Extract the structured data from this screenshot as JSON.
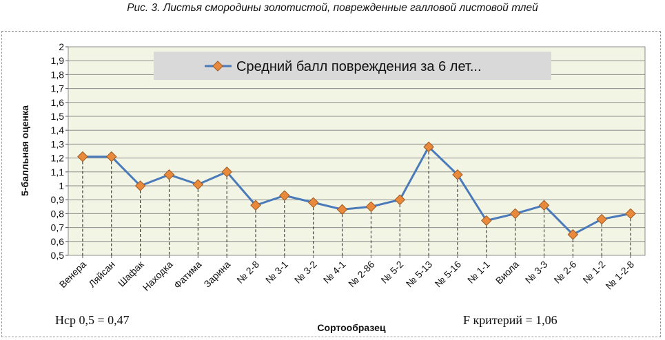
{
  "caption": "Рис. 3. Листья смородины золотистой, поврежденные галловой листовой тлей",
  "notes": {
    "hsr": "Нср 0,5 = 0,47",
    "f_criterion": "F критерий = 1,06"
  },
  "colors": {
    "plot_bg": "#f2f4e4",
    "line": "#4a7ab9",
    "marker_fill": "#e9893c",
    "marker_stroke": "#9c5a23",
    "legend_bg": "#d9d9d9",
    "grid": "#8c8c8c"
  },
  "chart_data": {
    "type": "line",
    "title": "",
    "xlabel": "Сортообразец",
    "ylabel": "5-балльная оценка",
    "ylim": [
      0.5,
      2
    ],
    "ytick_step": 0.1,
    "y_ticks": [
      "0,5",
      "0,6",
      "0,7",
      "0,8",
      "0,9",
      "1",
      "1,1",
      "1,2",
      "1,3",
      "1,4",
      "1,5",
      "1,6",
      "1,7",
      "1,8",
      "1,9",
      "2"
    ],
    "grid": true,
    "drop_lines": true,
    "legend_position": "top-center",
    "categories": [
      "Венера",
      "Ляйсан",
      "Шафак",
      "Находка",
      "Фатима",
      "Зарина",
      "№ 2-8",
      "№ 3-1",
      "№ 3-2",
      "№ 4-1",
      "№ 2-86",
      "№ 5-2",
      "№ 5-13",
      "№ 5-16",
      "№ 1-1",
      "Виола",
      "№ 3-3",
      "№ 2-6",
      "№ 1-2",
      "№ 1-2-8"
    ],
    "series": [
      {
        "name": "Средний балл повреждения за 6 лет...",
        "values": [
          1.21,
          1.21,
          1.0,
          1.08,
          1.01,
          1.1,
          0.86,
          0.93,
          0.88,
          0.83,
          0.85,
          0.9,
          1.28,
          1.08,
          0.75,
          0.8,
          0.86,
          0.65,
          0.76,
          0.8
        ]
      }
    ]
  }
}
